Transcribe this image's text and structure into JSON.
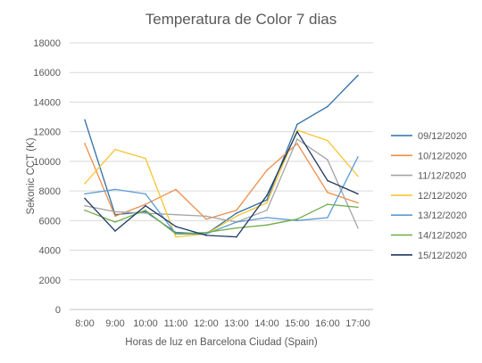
{
  "chart_data": {
    "type": "line",
    "title": "Temperatura de Color   7 dias",
    "xlabel": "Horas de luz en Barcelona Ciudad (Spain)",
    "ylabel": "Sekonic CCT (K)",
    "categories": [
      "8:00",
      "9:00",
      "10:00",
      "11:00",
      "12:00",
      "13:00",
      "14:00",
      "15:00",
      "16:00",
      "17:00"
    ],
    "ylim": [
      0,
      18000
    ],
    "yticks": [
      0,
      2000,
      4000,
      6000,
      8000,
      10000,
      12000,
      14000,
      16000,
      18000
    ],
    "grid": true,
    "legend_position": "right",
    "series": [
      {
        "name": "09/12/2020",
        "color": "#2e6fa6",
        "values": [
          12800,
          6400,
          6600,
          5200,
          5100,
          6500,
          7400,
          12500,
          13700,
          15800
        ]
      },
      {
        "name": "10/12/2020",
        "color": "#ed8e4a",
        "values": [
          11200,
          6300,
          7100,
          8100,
          6100,
          6700,
          9400,
          11200,
          7900,
          7200
        ]
      },
      {
        "name": "11/12/2020",
        "color": "#a5a5a5",
        "values": [
          7000,
          6600,
          6500,
          6400,
          6300,
          5900,
          6700,
          11500,
          10100,
          5500
        ]
      },
      {
        "name": "12/12/2020",
        "color": "#f7c531",
        "values": [
          8500,
          10800,
          10200,
          4900,
          5100,
          6300,
          7200,
          12100,
          11400,
          9000
        ]
      },
      {
        "name": "13/12/2020",
        "color": "#5b9bd5",
        "values": [
          7800,
          8100,
          7800,
          5100,
          5100,
          5900,
          6200,
          6000,
          6200,
          10300
        ]
      },
      {
        "name": "14/12/2020",
        "color": "#70ad47",
        "values": [
          6700,
          5900,
          6700,
          5100,
          5200,
          5500,
          5700,
          6100,
          7100,
          6900
        ]
      },
      {
        "name": "15/12/2020",
        "color": "#203864",
        "values": [
          7500,
          5300,
          7000,
          5600,
          5000,
          4900,
          7700,
          12000,
          8700,
          7800
        ]
      }
    ]
  }
}
